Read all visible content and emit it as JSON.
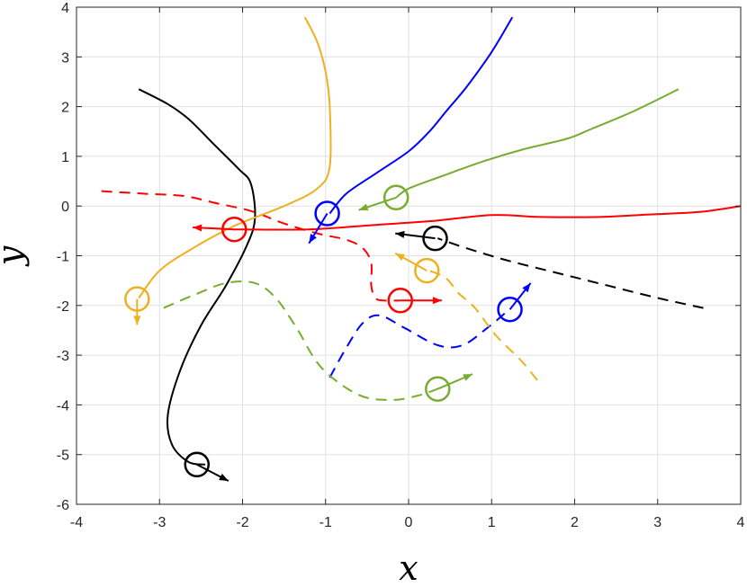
{
  "chart_data": {
    "type": "line",
    "title": "",
    "xlabel": "x",
    "ylabel": "y",
    "xlim": [
      -4,
      4
    ],
    "ylim": [
      -6,
      4
    ],
    "xticks": [
      -4,
      -3,
      -2,
      -1,
      0,
      1,
      2,
      3,
      4
    ],
    "yticks": [
      -6,
      -5,
      -4,
      -3,
      -2,
      -1,
      0,
      1,
      2,
      3,
      4
    ],
    "grid": true,
    "series": [
      {
        "color": "#000000",
        "style": "solid",
        "x": [
          -3.25,
          -2.9,
          -2.65,
          -2.35,
          -2.05,
          -1.9,
          -1.85,
          -1.95,
          -2.2,
          -2.5,
          -2.75,
          -2.9,
          -2.85,
          -2.65,
          -2.45
        ],
        "y": [
          2.35,
          2.05,
          1.75,
          1.25,
          0.75,
          0.45,
          -0.25,
          -0.8,
          -1.6,
          -2.4,
          -3.3,
          -4.2,
          -4.8,
          -5.15,
          -5.2
        ],
        "marker": {
          "x": -2.55,
          "y": -5.2
        },
        "arrow": {
          "dx": 0.38,
          "dy": -0.33
        }
      },
      {
        "color": "#000000",
        "style": "dashed",
        "x": [
          3.55,
          3.0,
          2.4,
          1.8,
          1.2,
          0.7,
          0.35
        ],
        "y": [
          -2.05,
          -1.85,
          -1.6,
          -1.35,
          -1.1,
          -0.85,
          -0.65
        ],
        "marker": {
          "x": 0.32,
          "y": -0.65
        },
        "arrow": {
          "dx": -0.48,
          "dy": 0.1
        }
      },
      {
        "color": "#FF0000",
        "style": "solid",
        "x": [
          4.0,
          3.5,
          2.9,
          2.3,
          1.6,
          1.0,
          0.3,
          -0.4,
          -1.2,
          -2.0,
          -2.1
        ],
        "y": [
          0.0,
          -0.12,
          -0.17,
          -0.22,
          -0.22,
          -0.18,
          -0.3,
          -0.38,
          -0.47,
          -0.47,
          -0.47
        ],
        "marker": {
          "x": -2.1,
          "y": -0.47
        },
        "arrow": {
          "dx": -0.5,
          "dy": 0.04
        }
      },
      {
        "color": "#FF0000",
        "style": "dashed",
        "x": [
          -3.7,
          -3.2,
          -2.7,
          -2.3,
          -1.9,
          -1.5,
          -1.1,
          -0.75,
          -0.55,
          -0.45,
          -0.45,
          -0.4,
          -0.3,
          -0.1
        ],
        "y": [
          0.3,
          0.25,
          0.2,
          0.05,
          -0.1,
          -0.35,
          -0.55,
          -0.68,
          -0.85,
          -1.15,
          -1.6,
          -1.85,
          -1.9,
          -1.9
        ],
        "marker": {
          "x": -0.1,
          "y": -1.9
        },
        "arrow": {
          "dx": 0.5,
          "dy": 0.0
        }
      },
      {
        "color": "#0000FF",
        "style": "solid",
        "x": [
          1.25,
          1.0,
          0.7,
          0.45,
          0.25,
          0.0,
          -0.4,
          -0.75,
          -0.95
        ],
        "y": [
          3.8,
          3.1,
          2.4,
          1.9,
          1.5,
          1.1,
          0.65,
          0.25,
          -0.15
        ],
        "marker": {
          "x": -0.98,
          "y": -0.15
        },
        "arrow": {
          "dx": -0.22,
          "dy": -0.6
        }
      },
      {
        "color": "#0000FF",
        "style": "dashed",
        "x": [
          -0.95,
          -0.75,
          -0.55,
          -0.35,
          -0.05,
          0.35,
          0.65,
          0.95,
          1.2
        ],
        "y": [
          -3.45,
          -2.85,
          -2.35,
          -2.2,
          -2.45,
          -2.8,
          -2.8,
          -2.45,
          -2.1
        ],
        "marker": {
          "x": 1.22,
          "y": -2.08
        },
        "arrow": {
          "dx": 0.25,
          "dy": 0.53
        }
      },
      {
        "color": "#EDB120",
        "style": "solid",
        "x": [
          -1.25,
          -1.1,
          -1.0,
          -0.95,
          -0.95,
          -1.1,
          -1.5,
          -2.1,
          -2.6,
          -3.0,
          -3.25
        ],
        "y": [
          3.8,
          3.3,
          2.7,
          2.0,
          0.8,
          0.35,
          0.0,
          -0.4,
          -0.85,
          -1.3,
          -1.85
        ],
        "marker": {
          "x": -3.27,
          "y": -1.87
        },
        "arrow": {
          "dx": 0.0,
          "dy": -0.52
        }
      },
      {
        "color": "#EDB120",
        "style": "dashed",
        "x": [
          1.55,
          1.35,
          1.05,
          0.8,
          0.6,
          0.45,
          0.25
        ],
        "y": [
          -3.5,
          -3.1,
          -2.6,
          -2.05,
          -1.75,
          -1.45,
          -1.3
        ],
        "marker": {
          "x": 0.22,
          "y": -1.3
        },
        "arrow": {
          "dx": -0.38,
          "dy": 0.35
        }
      },
      {
        "color": "#77AC30",
        "style": "solid",
        "x": [
          3.25,
          2.7,
          2.2,
          1.9,
          1.4,
          0.9,
          0.4,
          0.0,
          -0.15
        ],
        "y": [
          2.35,
          1.9,
          1.55,
          1.35,
          1.15,
          0.9,
          0.6,
          0.35,
          0.17
        ],
        "marker": {
          "x": -0.15,
          "y": 0.17
        },
        "arrow": {
          "dx": -0.45,
          "dy": -0.25
        }
      },
      {
        "color": "#77AC30",
        "style": "dashed",
        "x": [
          -2.95,
          -2.6,
          -2.2,
          -1.85,
          -1.6,
          -1.35,
          -1.05,
          -0.6,
          -0.2,
          0.1,
          0.35
        ],
        "y": [
          -2.05,
          -1.8,
          -1.55,
          -1.55,
          -1.85,
          -2.45,
          -3.25,
          -3.8,
          -3.9,
          -3.82,
          -3.68
        ],
        "marker": {
          "x": 0.35,
          "y": -3.68
        },
        "arrow": {
          "dx": 0.42,
          "dy": 0.3
        }
      }
    ]
  }
}
